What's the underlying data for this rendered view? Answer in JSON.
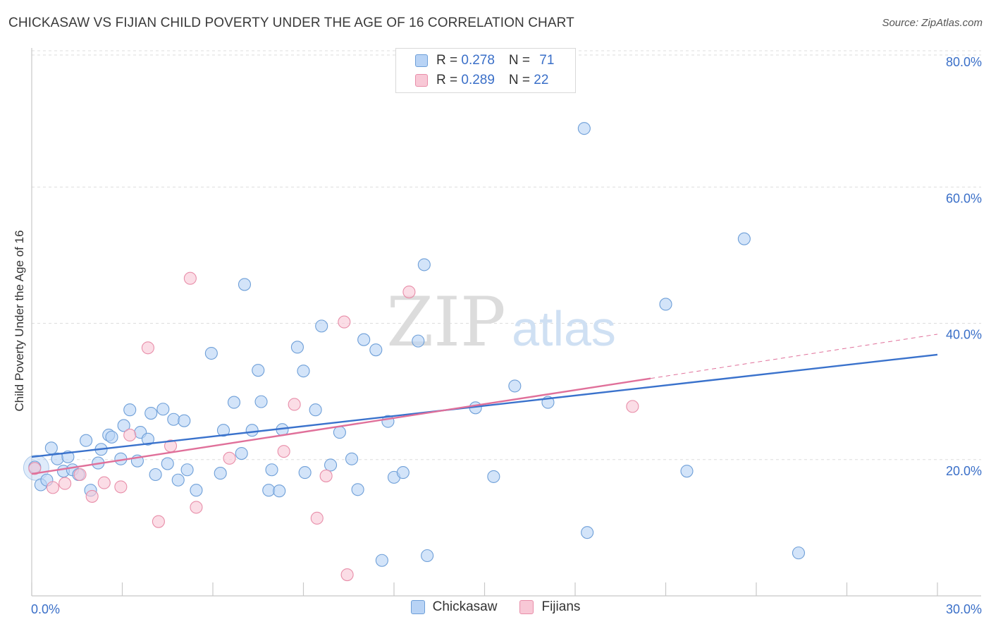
{
  "title": "CHICKASAW VS FIJIAN CHILD POVERTY UNDER THE AGE OF 16 CORRELATION CHART",
  "source": "Source: ZipAtlas.com",
  "watermark": {
    "zip": "ZIP",
    "atlas": "atlas"
  },
  "legend_top": [
    {
      "r_label": "R = ",
      "r_value": "0.278",
      "n_label": "N = ",
      "n_value": "71",
      "fill": "#b8d3f5",
      "stroke": "#6e9fd8"
    },
    {
      "r_label": "R = ",
      "r_value": "0.289",
      "n_label": "N = ",
      "n_value": "22",
      "fill": "#f8c8d6",
      "stroke": "#e88ea9"
    }
  ],
  "colors": {
    "chickasaw_fill": "#b8d3f5",
    "chickasaw_stroke": "#6e9fd8",
    "chickasaw_line": "#3a72cc",
    "fijians_fill": "#f8c8d6",
    "fijians_stroke": "#e88ea9",
    "fijians_line": "#e0709a",
    "tick_text": "#3a6fc8",
    "grid": "#dddddd"
  },
  "chart_data": {
    "type": "scatter",
    "title": "CHICKASAW VS FIJIAN CHILD POVERTY UNDER THE AGE OF 16 CORRELATION CHART",
    "xlabel": "",
    "ylabel": "Child Poverty Under the Age of 16",
    "xlim": [
      0,
      30
    ],
    "ylim": [
      0,
      80
    ],
    "x_tick_labels": [
      "0.0%",
      "30.0%"
    ],
    "y_ticks": [
      {
        "value": 20,
        "label": "20.0%"
      },
      {
        "value": 40,
        "label": "40.0%"
      },
      {
        "value": 60,
        "label": "60.0%"
      },
      {
        "value": 80,
        "label": "80.0%"
      }
    ],
    "grid": true,
    "legend": "bottom-center",
    "series": [
      {
        "name": "Chickasaw",
        "r": 0.278,
        "n": 71,
        "trend": {
          "x": [
            0,
            30
          ],
          "y": [
            20.4,
            35.4
          ],
          "dashed_from": null
        },
        "points": [
          [
            0.1,
            18.9
          ],
          [
            0.3,
            16.3
          ],
          [
            0.5,
            17
          ],
          [
            0.65,
            21.7
          ],
          [
            0.85,
            20.1
          ],
          [
            1.05,
            18.3
          ],
          [
            1.2,
            20.4
          ],
          [
            1.35,
            18.5
          ],
          [
            1.55,
            17.8
          ],
          [
            1.8,
            22.8
          ],
          [
            1.95,
            15.5
          ],
          [
            2.2,
            19.5
          ],
          [
            2.3,
            21.5
          ],
          [
            2.55,
            23.6
          ],
          [
            2.65,
            23.3
          ],
          [
            2.95,
            20.1
          ],
          [
            3.05,
            25
          ],
          [
            3.25,
            27.3
          ],
          [
            3.5,
            19.8
          ],
          [
            3.6,
            24
          ],
          [
            3.85,
            23
          ],
          [
            3.95,
            26.8
          ],
          [
            4.1,
            17.8
          ],
          [
            4.35,
            27.4
          ],
          [
            4.5,
            19.4
          ],
          [
            4.7,
            25.9
          ],
          [
            4.85,
            17
          ],
          [
            5.05,
            25.7
          ],
          [
            5.15,
            18.5
          ],
          [
            5.45,
            15.5
          ],
          [
            5.95,
            35.6
          ],
          [
            6.25,
            18
          ],
          [
            6.35,
            24.3
          ],
          [
            6.7,
            28.4
          ],
          [
            6.95,
            20.9
          ],
          [
            7.05,
            45.7
          ],
          [
            7.3,
            24.3
          ],
          [
            7.5,
            33.1
          ],
          [
            7.6,
            28.5
          ],
          [
            7.85,
            15.5
          ],
          [
            7.95,
            18.5
          ],
          [
            8.2,
            15.4
          ],
          [
            8.3,
            24.4
          ],
          [
            8.8,
            36.5
          ],
          [
            9.0,
            33
          ],
          [
            9.05,
            18.1
          ],
          [
            9.4,
            27.3
          ],
          [
            9.6,
            39.6
          ],
          [
            9.9,
            19.2
          ],
          [
            10.2,
            24
          ],
          [
            10.6,
            20.1
          ],
          [
            10.8,
            15.6
          ],
          [
            11.0,
            37.6
          ],
          [
            11.4,
            36.1
          ],
          [
            11.6,
            5.2
          ],
          [
            11.8,
            25.6
          ],
          [
            12.0,
            17.4
          ],
          [
            12.3,
            18.1
          ],
          [
            12.8,
            37.4
          ],
          [
            13.0,
            48.6
          ],
          [
            13.1,
            5.9
          ],
          [
            14.7,
            27.6
          ],
          [
            15.3,
            17.5
          ],
          [
            16.0,
            30.8
          ],
          [
            17.1,
            28.4
          ],
          [
            18.3,
            68.6
          ],
          [
            18.4,
            9.3
          ],
          [
            21.0,
            42.8
          ],
          [
            21.7,
            18.3
          ],
          [
            23.6,
            52.4
          ],
          [
            25.4,
            6.3
          ]
        ]
      },
      {
        "name": "Fijians",
        "r": 0.289,
        "n": 22,
        "trend": {
          "x": [
            0,
            30
          ],
          "y": [
            17.9,
            38.4
          ],
          "dashed_from": 20.5
        },
        "points": [
          [
            0.1,
            18.7
          ],
          [
            0.7,
            15.9
          ],
          [
            1.1,
            16.5
          ],
          [
            1.6,
            17.8
          ],
          [
            2.0,
            14.6
          ],
          [
            2.4,
            16.6
          ],
          [
            2.95,
            16
          ],
          [
            3.25,
            23.6
          ],
          [
            3.85,
            36.4
          ],
          [
            4.2,
            10.9
          ],
          [
            4.6,
            22
          ],
          [
            5.25,
            46.6
          ],
          [
            5.45,
            13
          ],
          [
            6.55,
            20.2
          ],
          [
            8.35,
            21.2
          ],
          [
            8.7,
            28.1
          ],
          [
            9.45,
            11.4
          ],
          [
            9.75,
            17.6
          ],
          [
            10.35,
            40.2
          ],
          [
            10.45,
            3.1
          ],
          [
            12.5,
            44.6
          ],
          [
            19.9,
            27.8
          ]
        ]
      }
    ]
  }
}
